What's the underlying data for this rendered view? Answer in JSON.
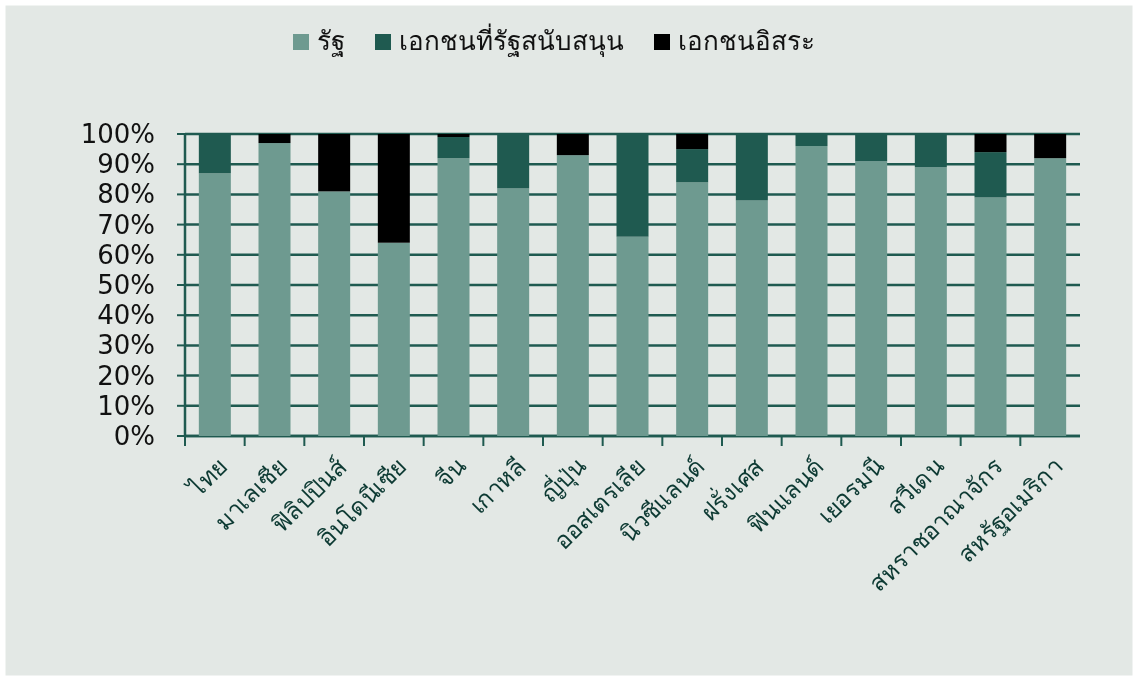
{
  "chart_data": {
    "type": "bar",
    "stacked": true,
    "categories": [
      "ไทย",
      "มาเลเซีย",
      "ฟิลิปปินส์",
      "อินโดนีเซีย",
      "จีน",
      "เกาหลี",
      "ญี่ปุ่น",
      "ออสเตรเลีย",
      "นิวซีแลนด์",
      "ฝรั่งเศส",
      "ฟินแลนด์",
      "เยอรมนี",
      "สวีเดน",
      "สหราชอาณาจักร",
      "สหรัฐอเมริกา"
    ],
    "series": [
      {
        "name": "รัฐ",
        "color": "#6e9a90",
        "values": [
          87,
          97,
          81,
          64,
          92,
          82,
          93,
          66,
          84,
          78,
          96,
          91,
          89,
          79,
          92
        ]
      },
      {
        "name": "เอกชนที่รัฐสนับสนุน",
        "color": "#1f5a50",
        "values": [
          13,
          0,
          0,
          0,
          7,
          18,
          0,
          34,
          11,
          22,
          4,
          9,
          11,
          15,
          0
        ]
      },
      {
        "name": "เอกชนอิสระ",
        "color": "#000000",
        "values": [
          0,
          3,
          19,
          36,
          1,
          0,
          7,
          0,
          5,
          0,
          0,
          0,
          0,
          6,
          8
        ]
      }
    ],
    "ylim": [
      0,
      100
    ],
    "yticks": [
      {
        "value": 0,
        "label": "0%"
      },
      {
        "value": 10,
        "label": "10%"
      },
      {
        "value": 20,
        "label": "20%"
      },
      {
        "value": 30,
        "label": "30%"
      },
      {
        "value": 40,
        "label": "40%"
      },
      {
        "value": 50,
        "label": "50%"
      },
      {
        "value": 60,
        "label": "60%"
      },
      {
        "value": 70,
        "label": "70%"
      },
      {
        "value": 80,
        "label": "80%"
      },
      {
        "value": 90,
        "label": "90%"
      },
      {
        "value": 100,
        "label": "100%"
      }
    ],
    "grid": "y",
    "legend": "top"
  }
}
